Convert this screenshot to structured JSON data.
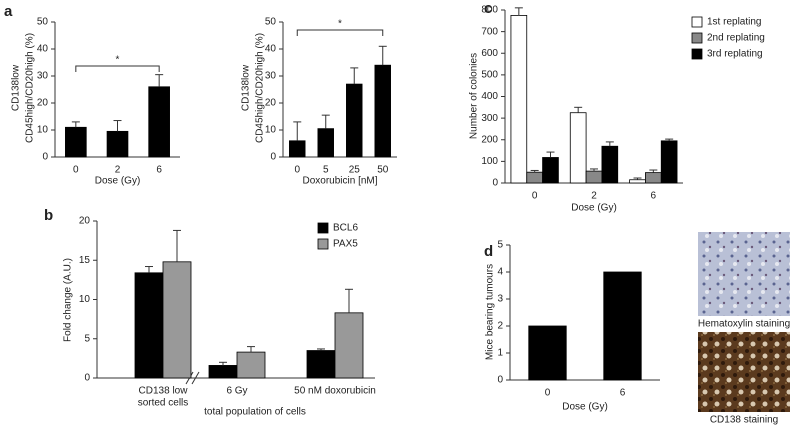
{
  "panel_labels": [
    "a",
    "b",
    "c",
    "d"
  ],
  "chart_data": [
    {
      "type": "bar",
      "ylabel": [
        "CD138low",
        "CD45high/CD20high (%)"
      ],
      "xlabel": "Dose (Gy)",
      "categories": [
        "0",
        "2",
        "6"
      ],
      "values": [
        11,
        9.5,
        26
      ],
      "errors": [
        2,
        4,
        4.5
      ],
      "color": "#000000",
      "ylim": [
        0,
        50
      ],
      "yticks": [
        0,
        10,
        20,
        30,
        40,
        50
      ],
      "annotation": "*"
    },
    {
      "type": "bar",
      "ylabel": [
        "CD138low",
        "CD45high/CD20high (%)"
      ],
      "xlabel": "Doxorubicin [nM]",
      "categories": [
        "0",
        "5",
        "25",
        "50"
      ],
      "values": [
        6,
        10.5,
        27,
        34
      ],
      "errors": [
        7,
        5,
        6,
        7
      ],
      "color": "#000000",
      "ylim": [
        0,
        50
      ],
      "yticks": [
        0,
        10,
        20,
        30,
        40,
        50
      ],
      "annotation": "*"
    },
    {
      "type": "bar",
      "ylabel": "Number of colonies",
      "xlabel": "Dose (Gy)",
      "categories": [
        "0",
        "2",
        "6"
      ],
      "series": [
        {
          "name": "1st replating",
          "color": "#ffffff",
          "values": [
            775,
            325,
            15
          ],
          "errors": [
            35,
            25,
            8
          ]
        },
        {
          "name": "2nd replating",
          "color": "#888888",
          "values": [
            50,
            55,
            48
          ],
          "errors": [
            8,
            10,
            12
          ]
        },
        {
          "name": "3rd replating",
          "color": "#000000",
          "values": [
            118,
            170,
            195
          ],
          "errors": [
            25,
            20,
            8
          ]
        }
      ],
      "ylim": [
        0,
        800
      ],
      "yticks": [
        0,
        100,
        200,
        300,
        400,
        500,
        600,
        700,
        800
      ]
    },
    {
      "type": "bar",
      "ylabel": "Fold change (A.U.)",
      "annotation": "total population of cells",
      "categories": [
        [
          "CD138 low",
          "sorted cells"
        ],
        "6 Gy",
        "50 nM doxorubicin"
      ],
      "series": [
        {
          "name": "BCL6",
          "color": "#000000",
          "values": [
            13.4,
            1.6,
            3.5
          ],
          "errors": [
            0.8,
            0.4,
            0.2
          ]
        },
        {
          "name": "PAX5",
          "color": "#999999",
          "values": [
            14.8,
            3.3,
            8.3
          ],
          "errors": [
            4,
            0.7,
            3
          ]
        }
      ],
      "ylim": [
        0,
        20
      ],
      "yticks": [
        0,
        5,
        10,
        15,
        20
      ]
    },
    {
      "type": "bar",
      "ylabel": "Mice bearing tumours",
      "xlabel": "Dose (Gy)",
      "categories": [
        "0",
        "6"
      ],
      "values": [
        2,
        4
      ],
      "color": "#000000",
      "ylim": [
        0,
        5
      ],
      "yticks": [
        0,
        1,
        2,
        3,
        4,
        5
      ]
    }
  ],
  "images": [
    {
      "caption": "Hematoxylin staining"
    },
    {
      "caption": "CD138 staining"
    }
  ]
}
